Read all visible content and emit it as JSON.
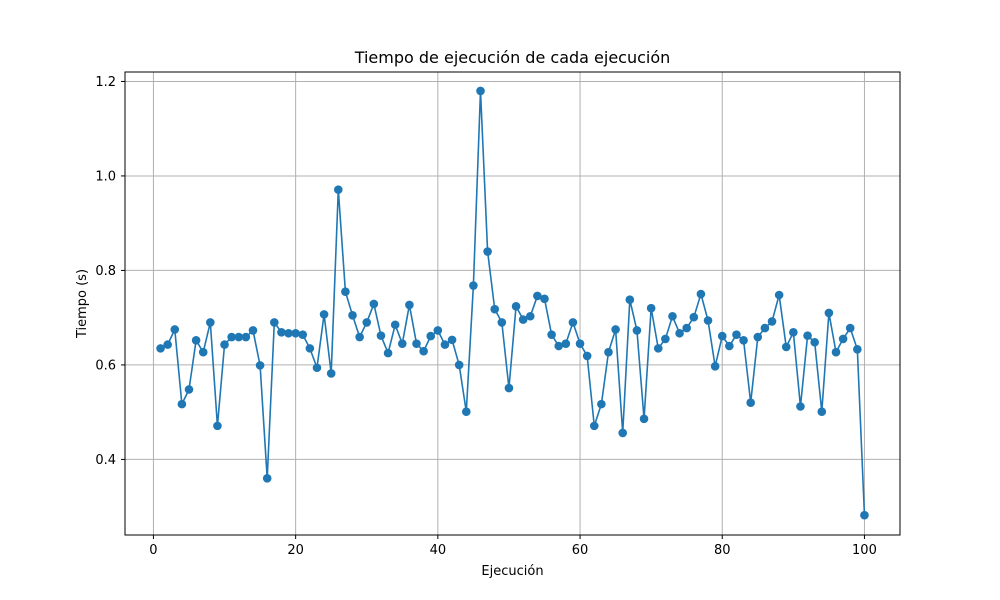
{
  "chart_data": {
    "type": "line",
    "title": "Tiempo de ejecución de cada ejecución",
    "xlabel": "Ejecución",
    "ylabel": "Tiempo (s)",
    "xlim": [
      -4,
      105
    ],
    "ylim": [
      0.24,
      1.22
    ],
    "xticks": [
      0,
      20,
      40,
      60,
      80,
      100
    ],
    "yticks": [
      0.4,
      0.6,
      0.8,
      1.0,
      1.2
    ],
    "xtick_labels": [
      "0",
      "20",
      "40",
      "60",
      "80",
      "100"
    ],
    "ytick_labels": [
      "0.4",
      "0.6",
      "0.8",
      "1.0",
      "1.2"
    ],
    "grid": true,
    "marker": "circle",
    "color": "#1f77b4",
    "x": [
      1,
      2,
      3,
      4,
      5,
      6,
      7,
      8,
      9,
      10,
      11,
      12,
      13,
      14,
      15,
      16,
      17,
      18,
      19,
      20,
      21,
      22,
      23,
      24,
      25,
      26,
      27,
      28,
      29,
      30,
      31,
      32,
      33,
      34,
      35,
      36,
      37,
      38,
      39,
      40,
      41,
      42,
      43,
      44,
      45,
      46,
      47,
      48,
      49,
      50,
      51,
      52,
      53,
      54,
      55,
      56,
      57,
      58,
      59,
      60,
      61,
      62,
      63,
      64,
      65,
      66,
      67,
      68,
      69,
      70,
      71,
      72,
      73,
      74,
      75,
      76,
      77,
      78,
      79,
      80,
      81,
      82,
      83,
      84,
      85,
      86,
      87,
      88,
      89,
      90,
      91,
      92,
      93,
      94,
      95,
      96,
      97,
      98,
      99,
      100
    ],
    "y": [
      0.635,
      0.643,
      0.675,
      0.517,
      0.548,
      0.652,
      0.627,
      0.69,
      0.471,
      0.643,
      0.659,
      0.659,
      0.659,
      0.673,
      0.599,
      0.36,
      0.69,
      0.669,
      0.667,
      0.667,
      0.664,
      0.635,
      0.594,
      0.707,
      0.582,
      0.971,
      0.755,
      0.705,
      0.659,
      0.69,
      0.729,
      0.662,
      0.625,
      0.685,
      0.645,
      0.727,
      0.645,
      0.629,
      0.661,
      0.673,
      0.643,
      0.653,
      0.6,
      0.501,
      0.768,
      1.18,
      0.84,
      0.718,
      0.69,
      0.551,
      0.724,
      0.696,
      0.703,
      0.746,
      0.74,
      0.664,
      0.64,
      0.645,
      0.69,
      0.645,
      0.619,
      0.471,
      0.517,
      0.627,
      0.675,
      0.456,
      0.738,
      0.673,
      0.486,
      0.72,
      0.635,
      0.655,
      0.703,
      0.667,
      0.678,
      0.701,
      0.75,
      0.694,
      0.597,
      0.661,
      0.64,
      0.664,
      0.652,
      0.52,
      0.659,
      0.678,
      0.692,
      0.748,
      0.638,
      0.669,
      0.512,
      0.662,
      0.648,
      0.501,
      0.71,
      0.627,
      0.655,
      0.678,
      0.633,
      0.282
    ]
  }
}
